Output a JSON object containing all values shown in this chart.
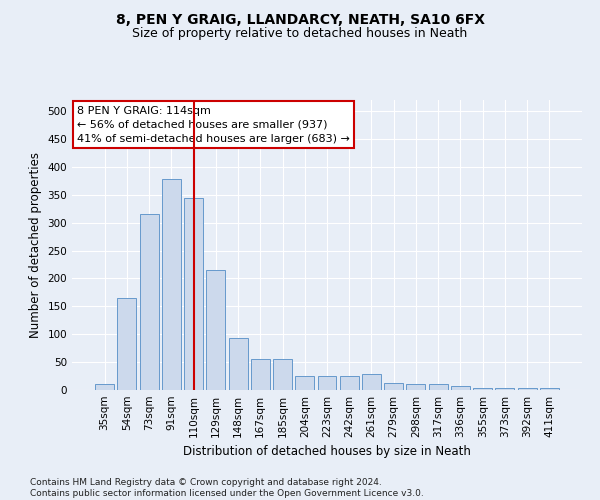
{
  "title": "8, PEN Y GRAIG, LLANDARCY, NEATH, SA10 6FX",
  "subtitle": "Size of property relative to detached houses in Neath",
  "xlabel": "Distribution of detached houses by size in Neath",
  "ylabel": "Number of detached properties",
  "categories": [
    "35sqm",
    "54sqm",
    "73sqm",
    "91sqm",
    "110sqm",
    "129sqm",
    "148sqm",
    "167sqm",
    "185sqm",
    "204sqm",
    "223sqm",
    "242sqm",
    "261sqm",
    "279sqm",
    "298sqm",
    "317sqm",
    "336sqm",
    "355sqm",
    "373sqm",
    "392sqm",
    "411sqm"
  ],
  "values": [
    10,
    165,
    315,
    378,
    345,
    215,
    93,
    55,
    55,
    25,
    25,
    25,
    28,
    13,
    10,
    10,
    7,
    4,
    3,
    4,
    4
  ],
  "bar_color": "#ccd9ec",
  "bar_edge_color": "#6699cc",
  "background_color": "#e8eef7",
  "grid_color": "#ffffff",
  "vline_x_index": 4,
  "vline_color": "#cc0000",
  "annotation_text": "8 PEN Y GRAIG: 114sqm\n← 56% of detached houses are smaller (937)\n41% of semi-detached houses are larger (683) →",
  "annotation_box_color": "#ffffff",
  "annotation_box_edge_color": "#cc0000",
  "footnote": "Contains HM Land Registry data © Crown copyright and database right 2024.\nContains public sector information licensed under the Open Government Licence v3.0.",
  "ylim": [
    0,
    520
  ],
  "yticks": [
    0,
    50,
    100,
    150,
    200,
    250,
    300,
    350,
    400,
    450,
    500
  ],
  "title_fontsize": 10,
  "subtitle_fontsize": 9,
  "axis_label_fontsize": 8.5,
  "tick_fontsize": 7.5,
  "annotation_fontsize": 8,
  "footnote_fontsize": 6.5
}
